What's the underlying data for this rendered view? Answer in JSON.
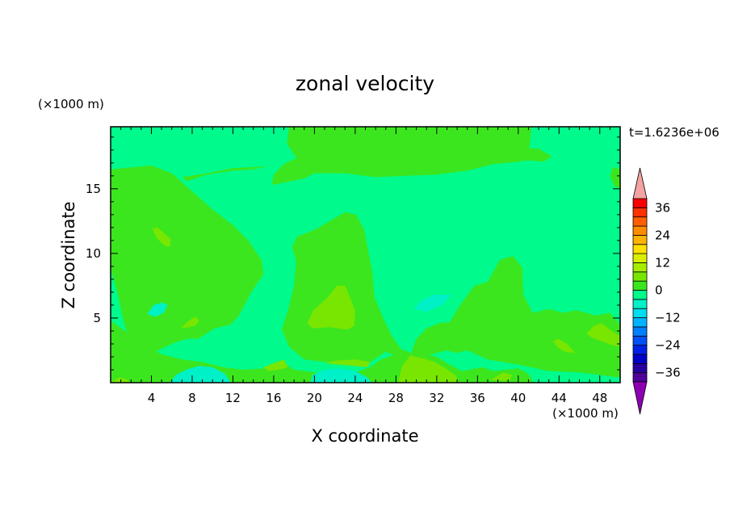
{
  "chart_data": {
    "type": "heatmap",
    "title": "zonal velocity",
    "xlabel": "X coordinate",
    "ylabel": "Z coordinate",
    "x_unit": "(×1000 m)",
    "y_unit": "(×1000 m)",
    "time_label": "t=1.6236e+06",
    "xlim": [
      0,
      50
    ],
    "ylim": [
      0,
      19.8
    ],
    "x_ticks": [
      4,
      8,
      12,
      16,
      20,
      24,
      28,
      32,
      36,
      40,
      44,
      48
    ],
    "y_ticks": [
      5,
      10,
      15
    ],
    "colorbar": {
      "tick_labels": [
        "36",
        "24",
        "12",
        "0",
        "−12",
        "−24",
        "−36"
      ],
      "tick_values": [
        36,
        24,
        12,
        0,
        -12,
        -24,
        -36
      ],
      "range": [
        -40,
        40
      ],
      "step": 4,
      "extend": "both",
      "colors": {
        "extend_high": "#f4a3a3",
        "extend_low": "#8c00b4",
        "pos36_40": "#ff0000",
        "pos32_36": "#ff3000",
        "pos28_32": "#ff5f00",
        "pos24_28": "#ff8c00",
        "pos20_24": "#ffb300",
        "pos16_20": "#ffe000",
        "pos12_16": "#d8f000",
        "pos8_12": "#a4ee00",
        "pos4_8": "#78e600",
        "pos0_4": "#3ce61e",
        "neg4_0": "#00fa8c",
        "neg8_4": "#00f0c8",
        "neg12_8": "#00dcf0",
        "neg16_12": "#00b4ff",
        "neg20_16": "#0080ff",
        "neg24_20": "#0050f5",
        "neg28_24": "#0020e6",
        "neg32_28": "#0000c8",
        "neg36_32": "#2800a0",
        "neg40_36": "#500096"
      }
    },
    "regions": [
      {
        "level": "-4 to 0",
        "polygon": [
          [
            0,
            0
          ],
          [
            50,
            0
          ],
          [
            50,
            19.8
          ],
          [
            0,
            19.8
          ]
        ]
      },
      {
        "level": "0 to 4",
        "polygon": [
          [
            0,
            16.5
          ],
          [
            4,
            16.8
          ],
          [
            6,
            16.2
          ],
          [
            8,
            14.8
          ],
          [
            10,
            13.4
          ],
          [
            12,
            12.2
          ],
          [
            13.5,
            11
          ],
          [
            14.8,
            9.5
          ],
          [
            15,
            8.4
          ],
          [
            13.8,
            7
          ],
          [
            12.6,
            5.2
          ],
          [
            11.8,
            4.5
          ],
          [
            10.2,
            4.2
          ],
          [
            8.6,
            3.4
          ],
          [
            7.5,
            3.4
          ],
          [
            6.3,
            3.1
          ],
          [
            5.4,
            2.8
          ],
          [
            4.2,
            2.3
          ],
          [
            3.2,
            2.1
          ],
          [
            2.5,
            2.4
          ],
          [
            1.8,
            3.4
          ],
          [
            1.2,
            5
          ],
          [
            0.6,
            7.2
          ],
          [
            0,
            8.8
          ]
        ]
      },
      {
        "level": "0 to 4",
        "polygon": [
          [
            0,
            4.8
          ],
          [
            1.8,
            3.8
          ],
          [
            3.4,
            2.8
          ],
          [
            5,
            2.2
          ],
          [
            7,
            1.8
          ],
          [
            9,
            1.6
          ],
          [
            11,
            1.2
          ],
          [
            13,
            1
          ],
          [
            15,
            1.1
          ],
          [
            17,
            1.5
          ],
          [
            18,
            1
          ],
          [
            20,
            0.8
          ],
          [
            22,
            0.6
          ],
          [
            24,
            0.8
          ],
          [
            25.5,
            1.2
          ],
          [
            26.5,
            1.8
          ],
          [
            28,
            2.2
          ],
          [
            30,
            2.4
          ],
          [
            32,
            2
          ],
          [
            33.5,
            1.3
          ],
          [
            34.5,
            0.9
          ],
          [
            36.5,
            1.2
          ],
          [
            37.5,
            0.9
          ],
          [
            40,
            1.1
          ],
          [
            41,
            0.7
          ],
          [
            41.5,
            0
          ],
          [
            0,
            0
          ]
        ]
      },
      {
        "level": "0 to 4",
        "polygon": [
          [
            16.8,
            4.1
          ],
          [
            17.4,
            5.6
          ],
          [
            18,
            7.5
          ],
          [
            18.2,
            9.4
          ],
          [
            17.8,
            10.5
          ],
          [
            18.3,
            11.3
          ],
          [
            20.2,
            11.9
          ],
          [
            21.5,
            12.5
          ],
          [
            23,
            13.2
          ],
          [
            24.1,
            13
          ],
          [
            24.9,
            11.8
          ],
          [
            25.3,
            10.1
          ],
          [
            25.7,
            8.5
          ],
          [
            25.9,
            6.6
          ],
          [
            26.8,
            4.9
          ],
          [
            27.6,
            3.6
          ],
          [
            28.5,
            2.6
          ],
          [
            29.5,
            2.3
          ],
          [
            30,
            3.4
          ],
          [
            31,
            4.2
          ],
          [
            32.2,
            4.6
          ],
          [
            33.3,
            4.7
          ],
          [
            34.2,
            5.9
          ],
          [
            35.7,
            7.5
          ],
          [
            37,
            7.8
          ],
          [
            38.2,
            9.5
          ],
          [
            39.5,
            9.8
          ],
          [
            40.4,
            8.9
          ],
          [
            40.5,
            6.8
          ],
          [
            41.4,
            5.4
          ],
          [
            43,
            5.7
          ],
          [
            44.4,
            5.4
          ],
          [
            45.7,
            5.6
          ],
          [
            47.6,
            5.2
          ],
          [
            49,
            5.4
          ],
          [
            50,
            4.5
          ],
          [
            50,
            0.4
          ],
          [
            46,
            0.8
          ],
          [
            43,
            0.9
          ],
          [
            40,
            1.4
          ],
          [
            37,
            1.8
          ],
          [
            35,
            2.5
          ],
          [
            34,
            2.3
          ],
          [
            33,
            2.5
          ],
          [
            31,
            2.1
          ],
          [
            28.5,
            1.9
          ],
          [
            27,
            2.4
          ],
          [
            25.5,
            1.6
          ],
          [
            24,
            1.7
          ],
          [
            22.5,
            1.6
          ],
          [
            21,
            1.6
          ],
          [
            19,
            1.8
          ],
          [
            17.5,
            2.8
          ]
        ]
      },
      {
        "level": "0 to 4",
        "polygon": [
          [
            17.5,
            19.8
          ],
          [
            17.3,
            18.5
          ],
          [
            18.7,
            16.8
          ],
          [
            21,
            16.3
          ],
          [
            23,
            16.6
          ],
          [
            25,
            16.7
          ],
          [
            27,
            16.6
          ],
          [
            29,
            16.7
          ],
          [
            31,
            16.9
          ],
          [
            33,
            17
          ],
          [
            35,
            17.2
          ],
          [
            37,
            17.3
          ],
          [
            39,
            17.3
          ],
          [
            40.5,
            17.2
          ],
          [
            41,
            17.4
          ],
          [
            41.3,
            19.8
          ]
        ]
      },
      {
        "level": "0 to 4",
        "polygon": [
          [
            15.8,
            15.3
          ],
          [
            17.2,
            15.5
          ],
          [
            19,
            15.8
          ],
          [
            20,
            16.2
          ],
          [
            23,
            16.2
          ],
          [
            26,
            15.9
          ],
          [
            29,
            16
          ],
          [
            32,
            16.1
          ],
          [
            35,
            16.4
          ],
          [
            37.5,
            16.9
          ],
          [
            39,
            17
          ],
          [
            41,
            17.2
          ],
          [
            42.5,
            17.1
          ],
          [
            43.3,
            17.5
          ],
          [
            42,
            18.1
          ],
          [
            39,
            18.2
          ],
          [
            35,
            18.1
          ],
          [
            31,
            18
          ],
          [
            27,
            17.8
          ],
          [
            23,
            17.7
          ],
          [
            20,
            17.4
          ],
          [
            18,
            17.3
          ],
          [
            17,
            16.9
          ],
          [
            16,
            16.1
          ]
        ]
      },
      {
        "level": "0 to 4",
        "polygon": [
          [
            7,
            15.9
          ],
          [
            9.5,
            16.2
          ],
          [
            12,
            16.6
          ],
          [
            14.5,
            16.7
          ],
          [
            15.6,
            16.8
          ],
          [
            14,
            16.5
          ],
          [
            12,
            16.4
          ],
          [
            9.5,
            16.1
          ],
          [
            7.5,
            15.6
          ]
        ]
      },
      {
        "level": "0 to 4",
        "polygon": [
          [
            49,
            16
          ],
          [
            49.4,
            15.2
          ],
          [
            50,
            15
          ],
          [
            50,
            16.5
          ],
          [
            49.3,
            16.7
          ]
        ]
      },
      {
        "level": "4 to 8",
        "polygon": [
          [
            4.1,
            11.9
          ],
          [
            4.5,
            11.2
          ],
          [
            5.3,
            10.6
          ],
          [
            5.8,
            10.5
          ],
          [
            5.9,
            11.1
          ],
          [
            5.2,
            11.6
          ],
          [
            4.6,
            12
          ]
        ]
      },
      {
        "level": "4 to 8",
        "polygon": [
          [
            6.9,
            4.2
          ],
          [
            7.5,
            4.7
          ],
          [
            8.3,
            5.1
          ],
          [
            8.7,
            4.8
          ],
          [
            8.3,
            4.4
          ],
          [
            7.6,
            4.3
          ]
        ]
      },
      {
        "level": "4 to 8",
        "polygon": [
          [
            19.3,
            4.6
          ],
          [
            19.9,
            5.6
          ],
          [
            21.3,
            6.6
          ],
          [
            22.2,
            7.5
          ],
          [
            23,
            7.5
          ],
          [
            23.6,
            6.4
          ],
          [
            24,
            5.5
          ],
          [
            23.9,
            4.4
          ],
          [
            23.2,
            4.1
          ],
          [
            21.5,
            4.3
          ],
          [
            19.8,
            4.2
          ]
        ]
      },
      {
        "level": "4 to 8",
        "polygon": [
          [
            21,
            1.5
          ],
          [
            25.2,
            1.2
          ],
          [
            25.5,
            1.6
          ],
          [
            24,
            1.8
          ],
          [
            22,
            1.7
          ]
        ]
      },
      {
        "level": "4 to 8",
        "polygon": [
          [
            15,
            1.2
          ],
          [
            16,
            1.5
          ],
          [
            17,
            1.8
          ],
          [
            17.4,
            1.2
          ],
          [
            16.5,
            1
          ],
          [
            15.5,
            0.9
          ]
        ]
      },
      {
        "level": "4 to 8",
        "polygon": [
          [
            28.2,
            0
          ],
          [
            28.6,
            1.3
          ],
          [
            29.4,
            2.1
          ],
          [
            30.6,
            1.9
          ],
          [
            31.8,
            1.6
          ],
          [
            32.9,
            1.1
          ],
          [
            33.8,
            0.6
          ],
          [
            34.2,
            0
          ]
        ]
      },
      {
        "level": "4 to 8",
        "polygon": [
          [
            37.3,
            0.2
          ],
          [
            38.5,
            0.8
          ],
          [
            39.4,
            0.6
          ],
          [
            39.1,
            0.1
          ]
        ]
      },
      {
        "level": "4 to 8",
        "polygon": [
          [
            43.4,
            3.2
          ],
          [
            43.9,
            2.7
          ],
          [
            44.6,
            2.4
          ],
          [
            45.6,
            2.3
          ],
          [
            44.8,
            3
          ],
          [
            43.9,
            3.4
          ]
        ]
      },
      {
        "level": "4 to 8",
        "polygon": [
          [
            46.7,
            3.8
          ],
          [
            47.4,
            4.4
          ],
          [
            48.2,
            4.6
          ],
          [
            49,
            4.1
          ],
          [
            50,
            3.6
          ],
          [
            50,
            2.8
          ],
          [
            49.2,
            2.9
          ],
          [
            48.2,
            3.2
          ],
          [
            47.2,
            3.5
          ]
        ]
      },
      {
        "level": "4 to 8",
        "polygon": [
          [
            0,
            0
          ],
          [
            0.8,
            0.4
          ],
          [
            1.5,
            0.3
          ],
          [
            2,
            0
          ]
        ]
      },
      {
        "level": "-8 to -4",
        "polygon": [
          [
            3.6,
            5.3
          ],
          [
            4.2,
            6
          ],
          [
            5,
            6.2
          ],
          [
            5.6,
            6
          ],
          [
            5.2,
            5.4
          ],
          [
            4.4,
            5.1
          ]
        ]
      },
      {
        "level": "-8 to -4",
        "polygon": [
          [
            29.8,
            5.7
          ],
          [
            30.4,
            6.3
          ],
          [
            31.7,
            6.8
          ],
          [
            33.4,
            6.8
          ],
          [
            32.5,
            6
          ],
          [
            31,
            5.5
          ]
        ]
      },
      {
        "level": "-8 to -4",
        "polygon": [
          [
            5.8,
            0
          ],
          [
            6.4,
            0.6
          ],
          [
            7.4,
            1
          ],
          [
            8.6,
            1.3
          ],
          [
            10,
            1.2
          ],
          [
            11.2,
            0.7
          ],
          [
            11.8,
            0
          ]
        ]
      },
      {
        "level": "-8 to -4",
        "polygon": [
          [
            19.6,
            0
          ],
          [
            19.8,
            0.6
          ],
          [
            21,
            1
          ],
          [
            22.5,
            1.1
          ],
          [
            24,
            0.9
          ],
          [
            25.2,
            0.4
          ],
          [
            25.6,
            0
          ]
        ]
      }
    ]
  }
}
